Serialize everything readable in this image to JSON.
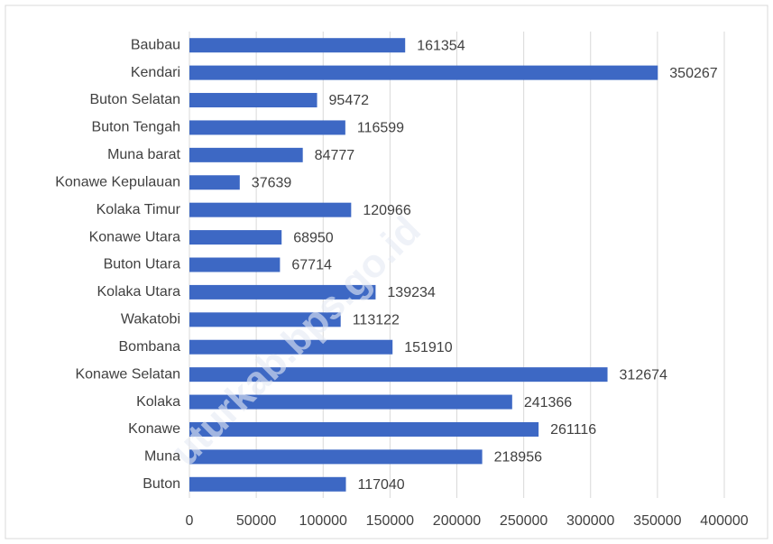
{
  "chart_data": {
    "type": "bar",
    "orientation": "horizontal",
    "categories": [
      "Baubau",
      "Kendari",
      "Buton Selatan",
      "Buton Tengah",
      "Muna barat",
      "Konawe Kepulauan",
      "Kolaka Timur",
      "Konawe Utara",
      "Buton Utara",
      "Kolaka Utara",
      "Wakatobi",
      "Bombana",
      "Konawe Selatan",
      "Kolaka",
      "Konawe",
      "Muna",
      "Buton"
    ],
    "values": [
      161354,
      350267,
      95472,
      116599,
      84777,
      37639,
      120966,
      68950,
      67714,
      139234,
      113122,
      151910,
      312674,
      241366,
      261116,
      218956,
      117040
    ],
    "color": "#3d68c4",
    "xlim": [
      0,
      400000
    ],
    "xticks": [
      0,
      50000,
      100000,
      150000,
      200000,
      250000,
      300000,
      350000,
      400000
    ],
    "grid": true,
    "watermark": "uturkab.bps.go.id"
  }
}
